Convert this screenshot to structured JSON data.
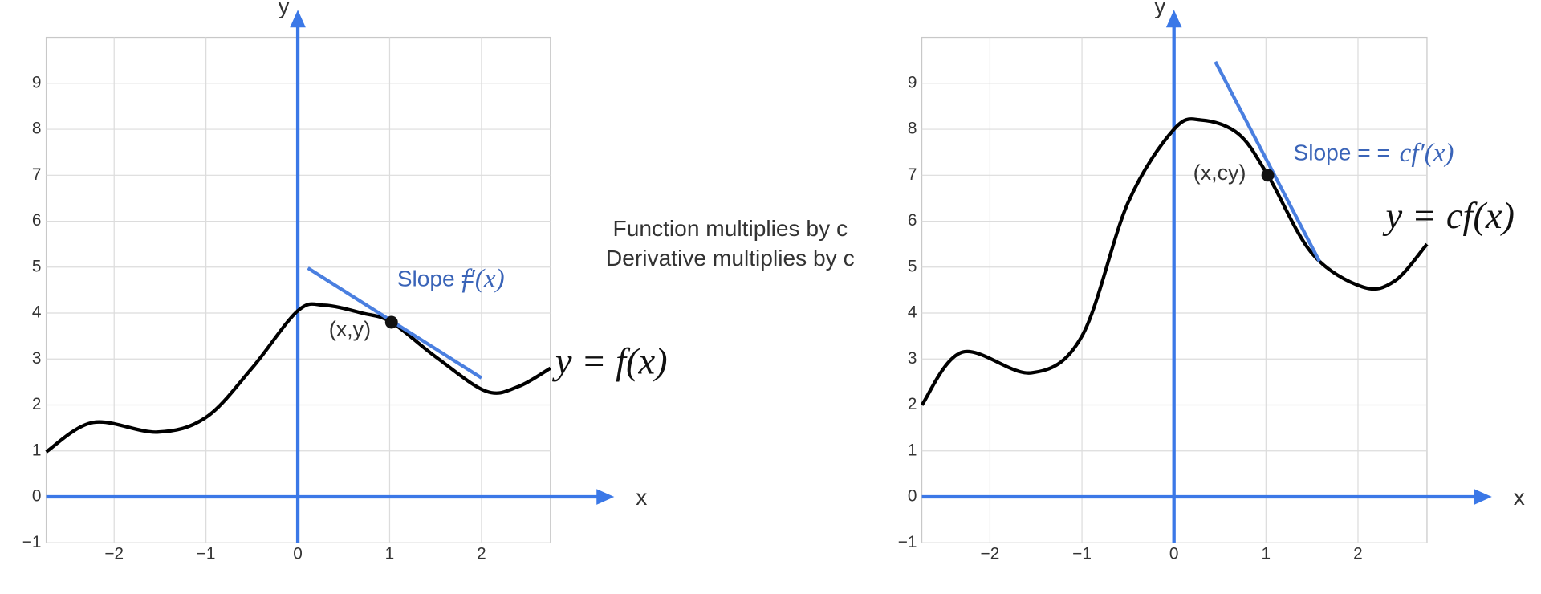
{
  "caption": [
    "Function multiplies by c",
    "Derivative multiplies by c"
  ],
  "chart_data": [
    {
      "type": "line",
      "x_label": "x",
      "y_label": "y",
      "xlim": [
        -2.74,
        2.75
      ],
      "ylim": [
        -1,
        10
      ],
      "xticks": [
        {
          "value": -2,
          "label": "−2"
        },
        {
          "value": -1,
          "label": "−1"
        },
        0,
        1,
        2
      ],
      "yticks": [
        {
          "value": -1,
          "label": "−1"
        },
        0,
        1,
        2,
        3,
        4,
        5,
        6,
        7,
        8,
        9
      ],
      "grid": true,
      "axis_color": "#3b78e7",
      "x": [
        -2.74,
        -2.23,
        -1.53,
        -1,
        -0.5,
        0,
        0.29,
        0.7,
        1.02,
        1.5,
        2.05,
        2.4,
        2.75
      ],
      "series": [
        {
          "color": "#000000",
          "values": [
            0.98,
            1.62,
            1.41,
            1.73,
            2.8,
            4.05,
            4.17,
            4.0,
            3.8,
            3.05,
            2.3,
            2.4,
            2.8
          ]
        }
      ],
      "tangent": {
        "color": "#4a7fe0",
        "x": [
          0.11,
          2.0
        ],
        "values": [
          4.98,
          2.59
        ]
      },
      "point": {
        "x": 1.02,
        "y": 3.8,
        "label": "(x,y)"
      },
      "slope_text": "Slope =",
      "slope_formula": "f′(x)",
      "curve_label": "y = f(x)"
    },
    {
      "type": "line",
      "x_label": "x",
      "y_label": "y",
      "xlim": [
        -2.74,
        2.75
      ],
      "ylim": [
        -1,
        10
      ],
      "xticks": [
        {
          "value": -2,
          "label": "−2"
        },
        {
          "value": -1,
          "label": "−1"
        },
        0,
        1,
        2
      ],
      "yticks": [
        {
          "value": -1,
          "label": "−1"
        },
        0,
        1,
        2,
        3,
        4,
        5,
        6,
        7,
        8,
        9
      ],
      "grid": true,
      "axis_color": "#3b78e7",
      "x": [
        -2.74,
        -2.3,
        -1.55,
        -1,
        -0.5,
        0,
        0.3,
        0.7,
        1.02,
        1.5,
        2.05,
        2.4,
        2.75
      ],
      "series": [
        {
          "color": "#000000",
          "values": [
            2.0,
            3.15,
            2.7,
            3.5,
            6.4,
            8.0,
            8.2,
            7.9,
            7.0,
            5.3,
            4.57,
            4.7,
            5.5
          ]
        }
      ],
      "tangent": {
        "color": "#4a7fe0",
        "x": [
          0.45,
          1.58
        ],
        "values": [
          9.47,
          5.13
        ]
      },
      "point": {
        "x": 1.02,
        "y": 7.0,
        "label": "(x,cy)"
      },
      "slope_text": "Slope = =",
      "slope_formula": "cf′(x)",
      "curve_label": "y = cf(x)"
    }
  ]
}
